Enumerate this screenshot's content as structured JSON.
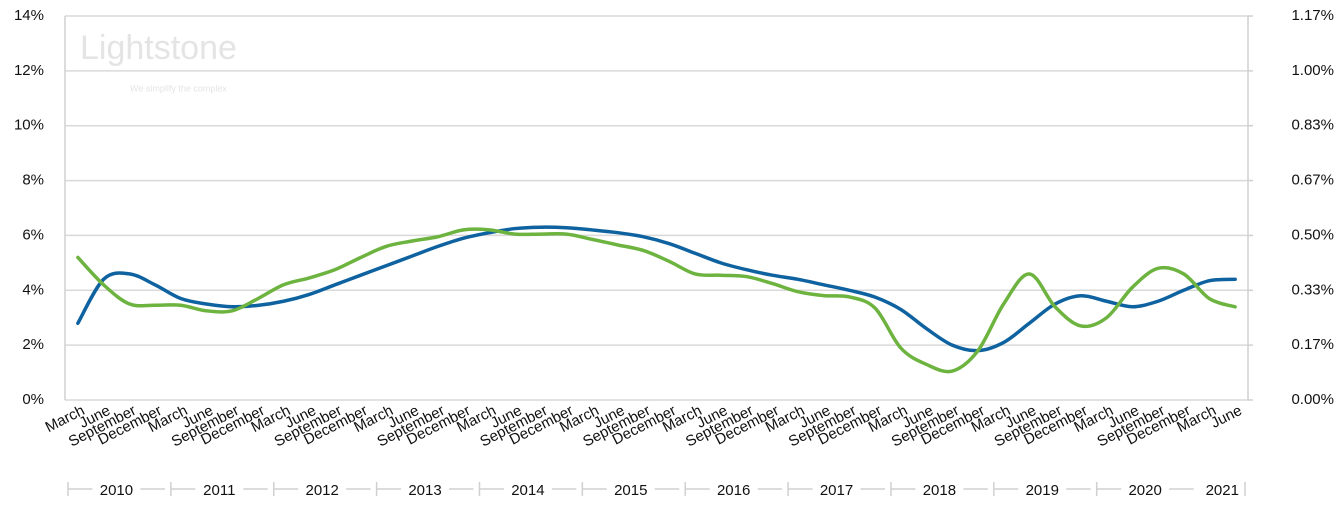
{
  "chart_data": {
    "type": "line",
    "watermark": "Lightstone",
    "watermark_tagline": "We simplify the complex",
    "categories": [
      "March",
      "June",
      "September",
      "December",
      "March",
      "June",
      "September",
      "December",
      "March",
      "June",
      "September",
      "December",
      "March",
      "June",
      "September",
      "December",
      "March",
      "June",
      "September",
      "December",
      "March",
      "June",
      "September",
      "December",
      "March",
      "June",
      "September",
      "December",
      "March",
      "June",
      "September",
      "December",
      "March",
      "June",
      "September",
      "December",
      "March",
      "June",
      "September",
      "December",
      "March",
      "June",
      "September",
      "December",
      "March",
      "June"
    ],
    "years": [
      "2010",
      "2011",
      "2012",
      "2013",
      "2014",
      "2015",
      "2016",
      "2017",
      "2018",
      "2019",
      "2020",
      "2021"
    ],
    "series": [
      {
        "color": "#0f62a0",
        "values": [
          2.8,
          4.4,
          4.6,
          4.2,
          3.7,
          3.5,
          3.4,
          3.45,
          3.6,
          3.85,
          4.2,
          4.55,
          4.9,
          5.25,
          5.6,
          5.9,
          6.1,
          6.25,
          6.3,
          6.28,
          6.2,
          6.1,
          5.95,
          5.7,
          5.35,
          5.0,
          4.75,
          4.55,
          4.4,
          4.2,
          4.0,
          3.75,
          3.3,
          2.6,
          2.0,
          1.8,
          2.1,
          2.8,
          3.5,
          3.8,
          3.6,
          3.4,
          3.6,
          4.0,
          4.35,
          4.4
        ]
      },
      {
        "color": "#6db33f",
        "axis": "y2",
        "values": [
          0.433,
          0.35,
          0.292,
          0.288,
          0.288,
          0.271,
          0.271,
          0.308,
          0.35,
          0.371,
          0.396,
          0.433,
          0.467,
          0.483,
          0.496,
          0.517,
          0.517,
          0.504,
          0.504,
          0.504,
          0.488,
          0.471,
          0.454,
          0.421,
          0.383,
          0.379,
          0.375,
          0.354,
          0.329,
          0.317,
          0.313,
          0.279,
          0.158,
          0.108,
          0.088,
          0.15,
          0.292,
          0.383,
          0.283,
          0.225,
          0.25,
          0.342,
          0.4,
          0.383,
          0.308,
          0.283
        ]
      }
    ],
    "ylim": [
      0,
      14
    ],
    "yticks": [
      {
        "value": 0,
        "label": "0%"
      },
      {
        "value": 2,
        "label": "2%"
      },
      {
        "value": 4,
        "label": "4%"
      },
      {
        "value": 6,
        "label": "6%"
      },
      {
        "value": 8,
        "label": "8%"
      },
      {
        "value": 10,
        "label": "10%"
      },
      {
        "value": 12,
        "label": "12%"
      },
      {
        "value": 14,
        "label": "14%"
      }
    ],
    "y2lim": [
      0,
      1.1667
    ],
    "y2ticks": [
      {
        "value": 0,
        "label": "0.00%"
      },
      {
        "value": 0.1667,
        "label": "0.17%"
      },
      {
        "value": 0.3333,
        "label": "0.33%"
      },
      {
        "value": 0.5,
        "label": "0.50%"
      },
      {
        "value": 0.6667,
        "label": "0.67%"
      },
      {
        "value": 0.8333,
        "label": "0.83%"
      },
      {
        "value": 1.0,
        "label": "1.00%"
      },
      {
        "value": 1.1667,
        "label": "1.17%"
      }
    ],
    "grid": true
  }
}
